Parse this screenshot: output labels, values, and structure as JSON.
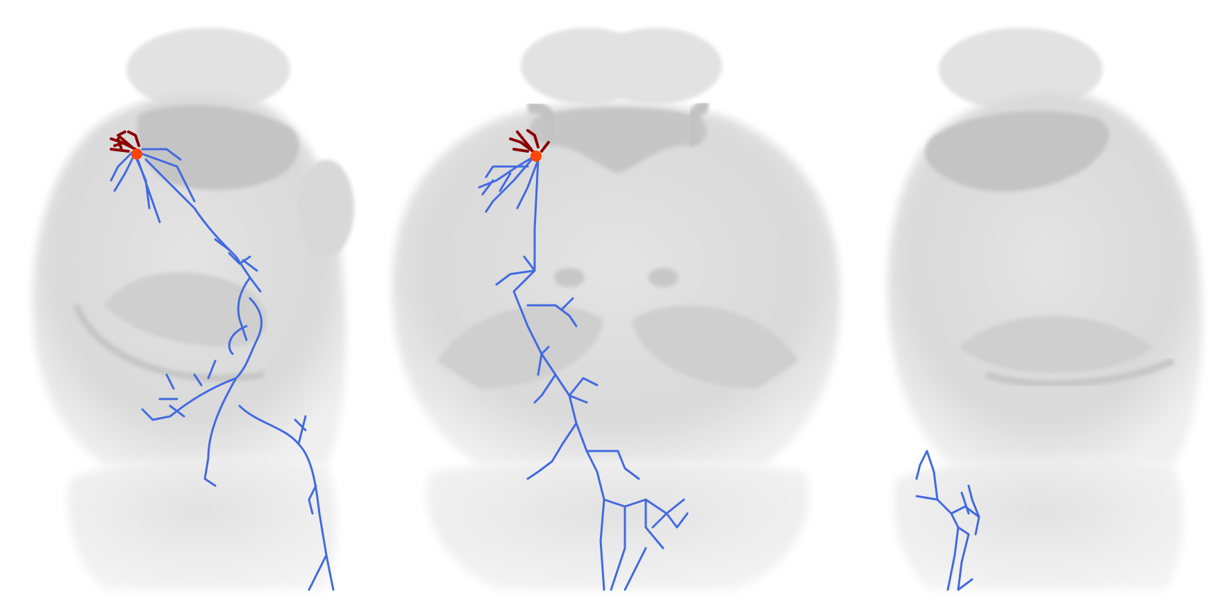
{
  "scene": {
    "description_free": true,
    "background_color": "#ffffff",
    "views": [
      {
        "id": "lateral-left",
        "view": "lateral"
      },
      {
        "id": "dorsal-center",
        "view": "dorsal"
      },
      {
        "id": "lateral-right",
        "view": "lateral"
      }
    ]
  },
  "colors": {
    "brain_base": "#dcdcdc",
    "brain_shade": "#c9c9c9",
    "brain_dark": "#b9b9b9",
    "axon": "#4169e1",
    "dendrite": "#8b0000",
    "soma": "#ff4500"
  },
  "icons": [
    "brain-view-lateral",
    "brain-view-dorsal",
    "brain-view-lateral-mirrored"
  ]
}
